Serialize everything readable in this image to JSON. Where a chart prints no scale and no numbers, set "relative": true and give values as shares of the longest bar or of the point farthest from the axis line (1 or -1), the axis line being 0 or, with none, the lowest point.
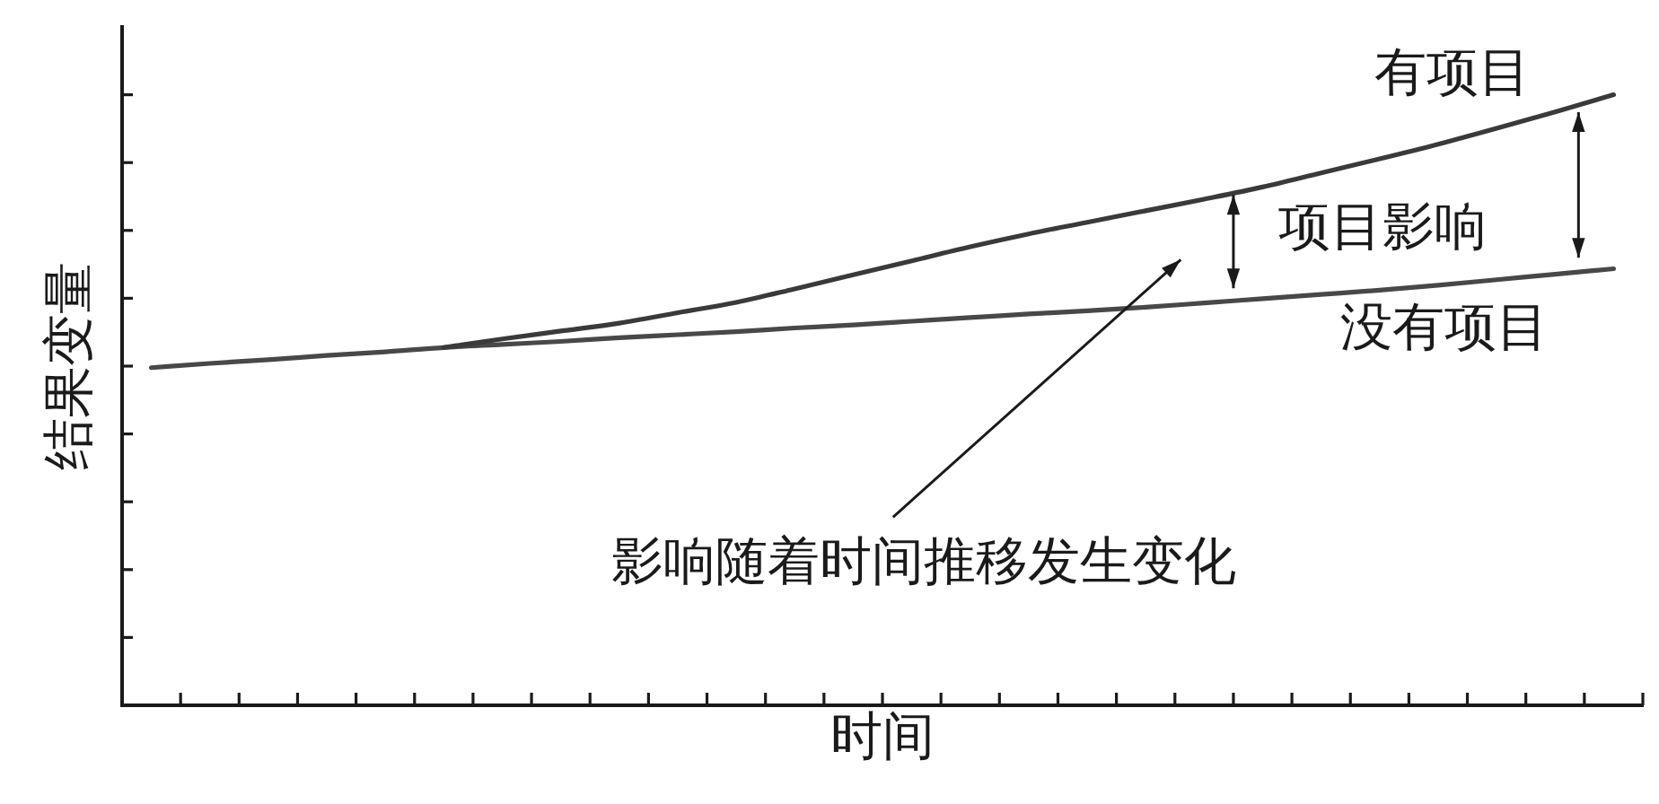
{
  "chart_data": {
    "type": "line",
    "relative": true,
    "xlabel": "时间",
    "ylabel": "结果变量",
    "categories": [
      null,
      null,
      null,
      null,
      null,
      null,
      null,
      null,
      null,
      null,
      null,
      null,
      null,
      null,
      null,
      null,
      null,
      null,
      null,
      null,
      null,
      null,
      null,
      null,
      null,
      null
    ],
    "series": [
      {
        "name": "有项目",
        "color": "#3a3a3a",
        "values": [
          null,
          null,
          null,
          null,
          null,
          0.586,
          0.6,
          0.613,
          0.626,
          0.643,
          0.66,
          0.682,
          0.705,
          0.728,
          0.751,
          0.772,
          0.791,
          0.81,
          0.829,
          0.849,
          0.872,
          0.895,
          0.919,
          0.945,
          0.972,
          1
        ]
      },
      {
        "name": "没有项目",
        "color": "#484848",
        "values": [
          0.553,
          0.56,
          0.566,
          0.573,
          0.579,
          0.586,
          0.591,
          0.596,
          0.602,
          0.607,
          0.612,
          0.618,
          0.623,
          0.629,
          0.635,
          0.641,
          0.646,
          0.652,
          0.659,
          0.666,
          0.673,
          0.68,
          0.688,
          0.697,
          0.706,
          0.715
        ]
      }
    ],
    "annotations": [
      "项目影响",
      "影响随着时间推移发生变化"
    ]
  }
}
